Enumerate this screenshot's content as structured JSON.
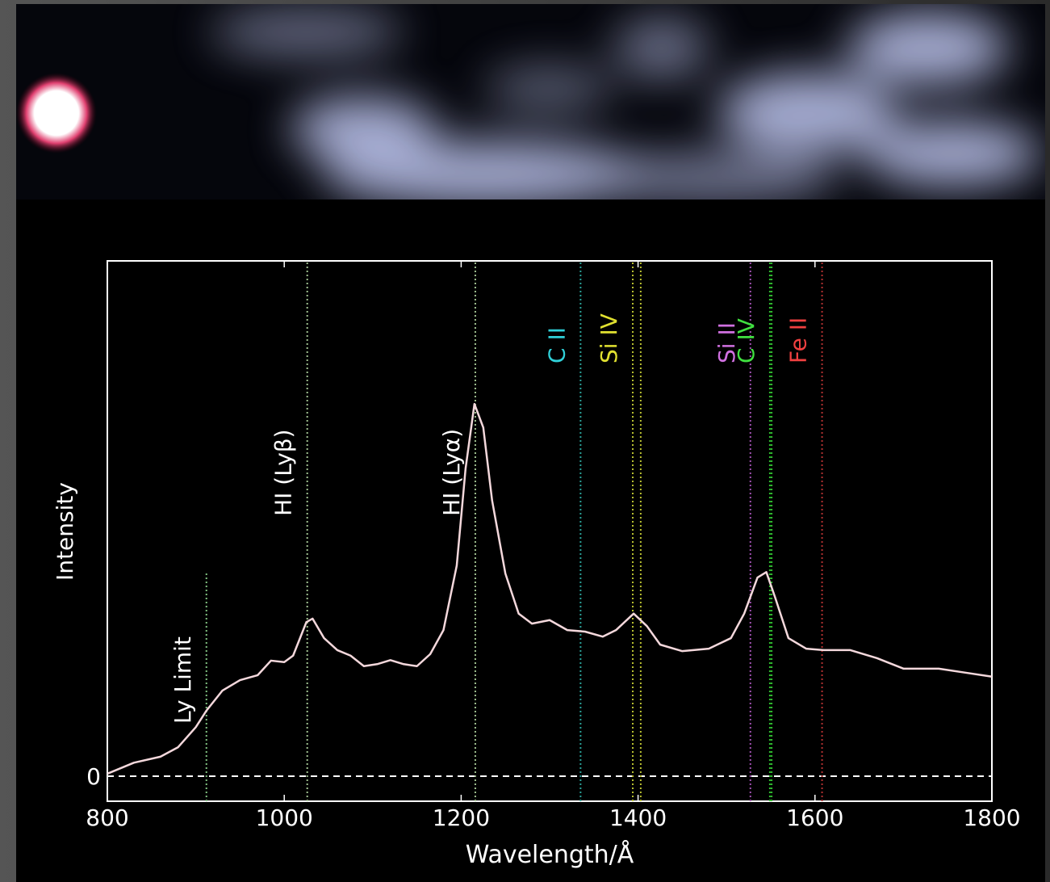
{
  "chart_data": {
    "type": "line",
    "xlabel": "Wavelength/Å",
    "ylabel": "Intensity",
    "xlim": [
      800,
      1800
    ],
    "xticks": [
      800,
      1000,
      1200,
      1400,
      1600,
      1800
    ],
    "ylim": [
      -0.5,
      10.3
    ],
    "yticks": [
      0
    ],
    "zero_line": true,
    "series": [
      {
        "color": "#f4d8dc",
        "x": [
          800,
          830,
          860,
          880,
          900,
          912,
          930,
          950,
          970,
          985,
          1000,
          1010,
          1025,
          1032,
          1045,
          1060,
          1075,
          1090,
          1105,
          1120,
          1135,
          1150,
          1165,
          1180,
          1195,
          1205,
          1215,
          1225,
          1235,
          1250,
          1265,
          1280,
          1300,
          1320,
          1340,
          1360,
          1375,
          1395,
          1410,
          1425,
          1450,
          1480,
          1505,
          1520,
          1535,
          1545,
          1555,
          1570,
          1590,
          1610,
          1640,
          1670,
          1700,
          1740,
          1770,
          1800
        ],
        "values": [
          0.05,
          0.27,
          0.39,
          0.58,
          0.98,
          1.31,
          1.71,
          1.92,
          2.02,
          2.31,
          2.28,
          2.41,
          3.08,
          3.15,
          2.76,
          2.52,
          2.41,
          2.2,
          2.24,
          2.32,
          2.24,
          2.2,
          2.44,
          2.92,
          4.21,
          6.15,
          7.44,
          6.97,
          5.51,
          4.05,
          3.25,
          3.05,
          3.12,
          2.92,
          2.89,
          2.79,
          2.92,
          3.25,
          3,
          2.63,
          2.5,
          2.55,
          2.76,
          3.25,
          3.97,
          4.08,
          3.57,
          2.76,
          2.55,
          2.52,
          2.52,
          2.36,
          2.15,
          2.15,
          2.07,
          1.99
        ]
      }
    ],
    "lines": [
      {
        "name": "Ly Limit",
        "x": [
          912
        ],
        "top": 4.08,
        "color": "#7fbf7f",
        "label_color": "#ffffff",
        "label_y": 1.05
      },
      {
        "name": "HI (Lyβ)",
        "x": [
          1026
        ],
        "color": "#9fbf8f",
        "label_color": "#ffffff",
        "label_y": 5.2
      },
      {
        "name": "HI (Lyα)",
        "x": [
          1216
        ],
        "color": "#9fbf8f",
        "label_color": "#ffffff",
        "label_y": 5.2
      },
      {
        "name": "C II",
        "x": [
          1335
        ],
        "color": "#2aa198",
        "label_color": "#30d0d8",
        "label_y": 8.25
      },
      {
        "name": "Si IV",
        "x": [
          1394,
          1403
        ],
        "color": "#b8c030",
        "label_color": "#e0e030",
        "label_y": 8.25
      },
      {
        "name": "Si II",
        "x": [
          1527
        ],
        "color": "#a050b0",
        "label_color": "#d070e0",
        "label_y": 8.25
      },
      {
        "name": "C IV",
        "x": [
          1549,
          1551
        ],
        "color": "#30c030",
        "label_color": "#40e040",
        "label_y": 8.25
      },
      {
        "name": "Fe II",
        "x": [
          1608
        ],
        "color": "#b03030",
        "label_color": "#f04040",
        "label_y": 8.25
      }
    ]
  }
}
